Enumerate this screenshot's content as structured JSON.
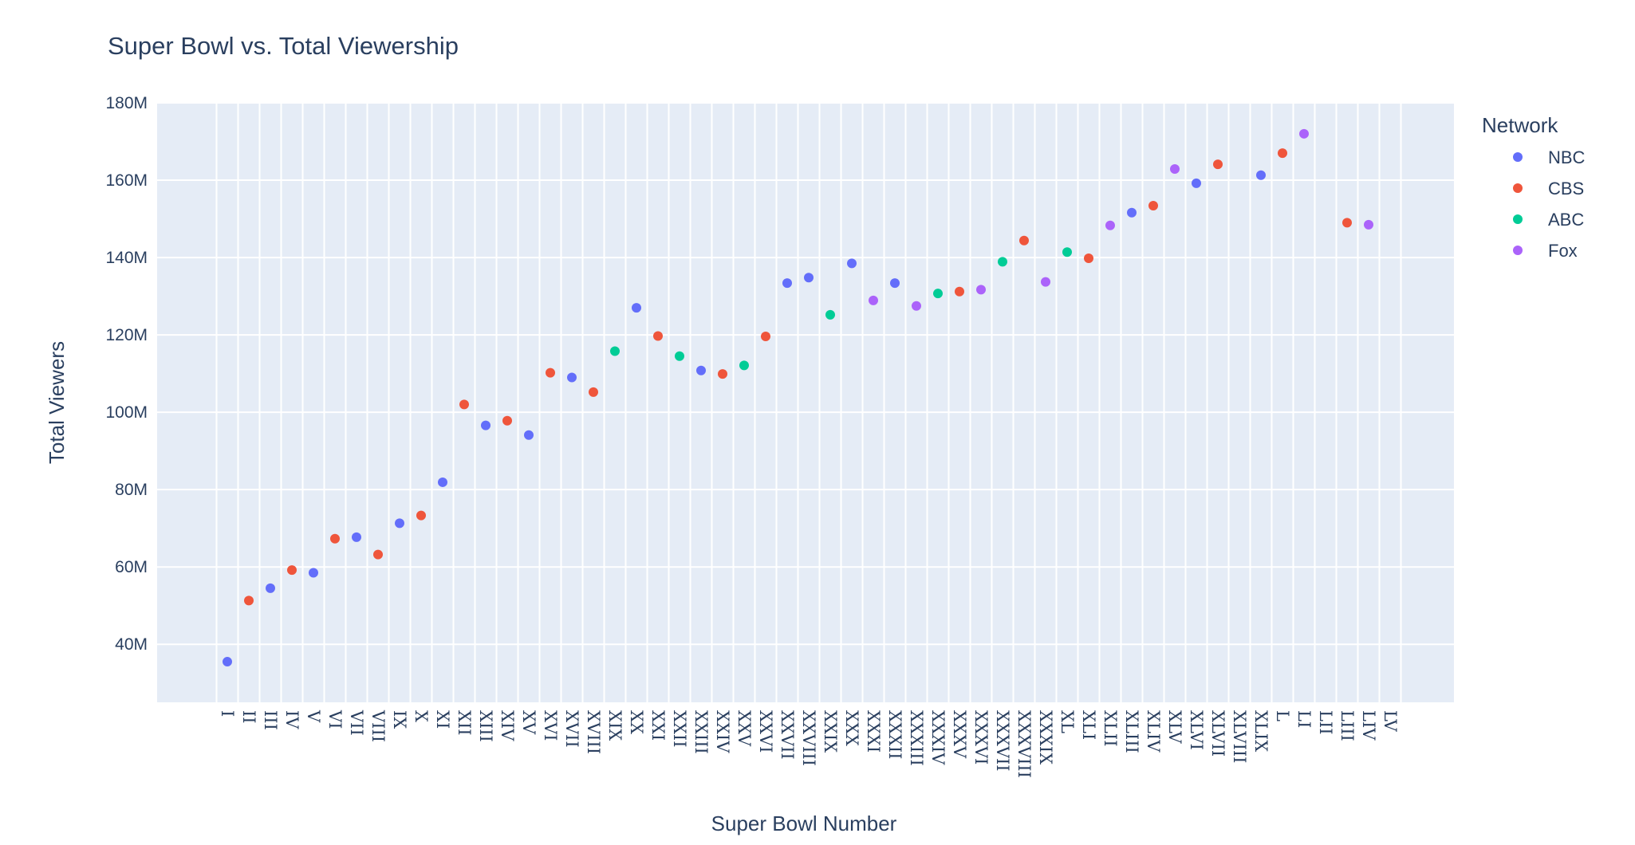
{
  "chart_data": {
    "type": "scatter",
    "title": "Super Bowl vs. Total Viewership",
    "xlabel": "Super Bowl Number",
    "ylabel": "Total Viewers",
    "y_unit_suffix": "M",
    "ylim": [
      25,
      180
    ],
    "y_ticks": [
      40,
      60,
      80,
      100,
      120,
      140,
      160,
      180
    ],
    "grid": true,
    "plot_background": "#e5ecf6",
    "legend": {
      "title": "Network",
      "placement": "right",
      "entries": [
        "NBC",
        "CBS",
        "ABC",
        "Fox"
      ]
    },
    "colors": {
      "NBC": "#636efa",
      "CBS": "#EF553B",
      "ABC": "#00cc96",
      "Fox": "#ab63fa"
    },
    "categories": [
      "I",
      "II",
      "III",
      "IV",
      "V",
      "VI",
      "VII",
      "VIII",
      "IX",
      "X",
      "XI",
      "XII",
      "XIII",
      "XIV",
      "XV",
      "XVI",
      "XVII",
      "XVIII",
      "XIX",
      "XX",
      "XXI",
      "XXII",
      "XXIII",
      "XXIV",
      "XXV",
      "XXVI",
      "XXVII",
      "XXVIII",
      "XXIX",
      "XXX",
      "XXXI",
      "XXXII",
      "XXXIII",
      "XXXIV",
      "XXXV",
      "XXXVI",
      "XXXVII",
      "XXXVIII",
      "XXXIX",
      "XL",
      "XLI",
      "XLII",
      "XLIII",
      "XLIV",
      "XLV",
      "XLVI",
      "XLVII",
      "XLVIII",
      "XLIX",
      "L",
      "LI",
      "LII",
      "LIII",
      "LIV",
      "LV"
    ],
    "points": [
      {
        "x": "I",
        "y": 35.5,
        "network": "NBC"
      },
      {
        "x": "II",
        "y": 51.3,
        "network": "CBS"
      },
      {
        "x": "III",
        "y": 54.5,
        "network": "NBC"
      },
      {
        "x": "IV",
        "y": 59.2,
        "network": "CBS"
      },
      {
        "x": "V",
        "y": 58.5,
        "network": "NBC"
      },
      {
        "x": "VI",
        "y": 67.3,
        "network": "CBS"
      },
      {
        "x": "VII",
        "y": 67.7,
        "network": "NBC"
      },
      {
        "x": "VIII",
        "y": 63.2,
        "network": "CBS"
      },
      {
        "x": "IX",
        "y": 71.3,
        "network": "NBC"
      },
      {
        "x": "X",
        "y": 73.3,
        "network": "CBS"
      },
      {
        "x": "XI",
        "y": 81.9,
        "network": "NBC"
      },
      {
        "x": "XII",
        "y": 102.0,
        "network": "CBS"
      },
      {
        "x": "XIII",
        "y": 96.6,
        "network": "NBC"
      },
      {
        "x": "XIV",
        "y": 97.8,
        "network": "CBS"
      },
      {
        "x": "XV",
        "y": 94.1,
        "network": "NBC"
      },
      {
        "x": "XVI",
        "y": 110.2,
        "network": "CBS"
      },
      {
        "x": "XVII",
        "y": 109.0,
        "network": "NBC"
      },
      {
        "x": "XVIII",
        "y": 105.2,
        "network": "CBS"
      },
      {
        "x": "XIX",
        "y": 115.8,
        "network": "ABC"
      },
      {
        "x": "XX",
        "y": 127.0,
        "network": "NBC"
      },
      {
        "x": "XXI",
        "y": 119.7,
        "network": "CBS"
      },
      {
        "x": "XXII",
        "y": 114.5,
        "network": "ABC"
      },
      {
        "x": "XXIII",
        "y": 110.8,
        "network": "NBC"
      },
      {
        "x": "XXIV",
        "y": 109.9,
        "network": "CBS"
      },
      {
        "x": "XXV",
        "y": 112.1,
        "network": "ABC"
      },
      {
        "x": "XXVI",
        "y": 119.6,
        "network": "CBS"
      },
      {
        "x": "XXVII",
        "y": 133.4,
        "network": "NBC"
      },
      {
        "x": "XXVIII",
        "y": 134.8,
        "network": "NBC"
      },
      {
        "x": "XXIX",
        "y": 125.2,
        "network": "ABC"
      },
      {
        "x": "XXX",
        "y": 138.5,
        "network": "NBC"
      },
      {
        "x": "XXXI",
        "y": 128.9,
        "network": "Fox"
      },
      {
        "x": "XXXII",
        "y": 133.4,
        "network": "NBC"
      },
      {
        "x": "XXXIII",
        "y": 127.5,
        "network": "Fox"
      },
      {
        "x": "XXXIV",
        "y": 130.7,
        "network": "ABC"
      },
      {
        "x": "XXXV",
        "y": 131.2,
        "network": "CBS"
      },
      {
        "x": "XXXVI",
        "y": 131.7,
        "network": "Fox"
      },
      {
        "x": "XXXVII",
        "y": 138.9,
        "network": "ABC"
      },
      {
        "x": "XXXVIII",
        "y": 144.4,
        "network": "CBS"
      },
      {
        "x": "XXXIX",
        "y": 133.7,
        "network": "Fox"
      },
      {
        "x": "XL",
        "y": 141.4,
        "network": "ABC"
      },
      {
        "x": "XLI",
        "y": 139.8,
        "network": "CBS"
      },
      {
        "x": "XLII",
        "y": 148.3,
        "network": "Fox"
      },
      {
        "x": "XLIII",
        "y": 151.6,
        "network": "NBC"
      },
      {
        "x": "XLIV",
        "y": 153.4,
        "network": "CBS"
      },
      {
        "x": "XLV",
        "y": 162.9,
        "network": "Fox"
      },
      {
        "x": "XLVI",
        "y": 159.2,
        "network": "NBC"
      },
      {
        "x": "XLVII",
        "y": 164.1,
        "network": "CBS"
      },
      {
        "x": "XLIX",
        "y": 161.3,
        "network": "NBC"
      },
      {
        "x": "L",
        "y": 167.0,
        "network": "CBS"
      },
      {
        "x": "LI",
        "y": 172.0,
        "network": "Fox"
      },
      {
        "x": "LIII",
        "y": 149.0,
        "network": "CBS"
      },
      {
        "x": "LIV",
        "y": 148.5,
        "network": "Fox"
      }
    ]
  }
}
